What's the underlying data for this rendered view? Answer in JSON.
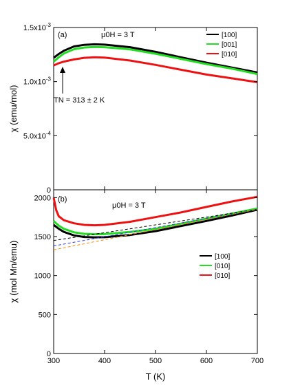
{
  "chart_data": [
    {
      "panel_label": "(a)",
      "type": "line",
      "annotation_field": "μ0H = 3 T",
      "annotation_tn": "TN = 313 ± 2 K",
      "ylabel": "χ (emu/mol)",
      "xlim": [
        300,
        700
      ],
      "ylim": [
        0,
        0.0015
      ],
      "y_tick_labels": [
        "0",
        "5.0x10-4",
        "1.0x10-3",
        "1.5x10-3"
      ],
      "y_ticks": [
        0,
        0.0005,
        0.001,
        0.0015
      ],
      "legend_position": "top-right",
      "series": [
        {
          "name": "[100]",
          "color": "#000000",
          "x": [
            300,
            310,
            320,
            340,
            360,
            380,
            400,
            450,
            500,
            550,
            600,
            650,
            700
          ],
          "y": [
            0.00122,
            0.001255,
            0.001285,
            0.001325,
            0.00134,
            0.001345,
            0.001342,
            0.001318,
            0.001275,
            0.001225,
            0.001175,
            0.00113,
            0.001085
          ]
        },
        {
          "name": "[001]",
          "color": "#22dd22",
          "x": [
            300,
            310,
            320,
            340,
            360,
            380,
            400,
            450,
            500,
            550,
            600,
            650,
            700
          ],
          "y": [
            0.001185,
            0.001225,
            0.00126,
            0.0013,
            0.001315,
            0.00132,
            0.001318,
            0.001298,
            0.001258,
            0.00121,
            0.001162,
            0.00112,
            0.00107
          ]
        },
        {
          "name": "[010]",
          "color": "#ee1111",
          "x": [
            300,
            310,
            320,
            340,
            360,
            380,
            400,
            450,
            500,
            550,
            600,
            650,
            700
          ],
          "y": [
            0.00115,
            0.00117,
            0.001185,
            0.001205,
            0.00122,
            0.001225,
            0.001222,
            0.001195,
            0.001155,
            0.00111,
            0.001065,
            0.00103,
            0.000995
          ]
        }
      ]
    },
    {
      "panel_label": "(b)",
      "type": "line",
      "annotation_field": "μ0H = 3 T",
      "xlabel": "T (K)",
      "ylabel": "χ (mol Mn/emu)",
      "xlim": [
        300,
        700
      ],
      "ylim": [
        0,
        2100
      ],
      "x_ticks": [
        300,
        400,
        500,
        600,
        700
      ],
      "y_ticks": [
        0,
        500,
        1000,
        1500,
        2000
      ],
      "legend_position": "center-right",
      "series": [
        {
          "name": "[100]",
          "color": "#000000",
          "x": [
            300,
            310,
            320,
            340,
            360,
            380,
            400,
            450,
            500,
            550,
            600,
            650,
            700
          ],
          "y": [
            1650,
            1600,
            1560,
            1515,
            1495,
            1490,
            1492,
            1520,
            1570,
            1635,
            1700,
            1770,
            1845
          ]
        },
        {
          "name": "[010]",
          "color": "#22dd22",
          "x": [
            300,
            310,
            320,
            340,
            360,
            380,
            400,
            450,
            500,
            550,
            600,
            650,
            700
          ],
          "y": [
            1700,
            1640,
            1600,
            1555,
            1535,
            1530,
            1532,
            1560,
            1600,
            1665,
            1730,
            1795,
            1860
          ]
        },
        {
          "name": "[010]",
          "color": "#ee1111",
          "x": [
            300,
            305,
            310,
            320,
            340,
            360,
            380,
            400,
            450,
            500,
            550,
            600,
            650,
            700
          ],
          "y": [
            2000,
            1840,
            1760,
            1710,
            1670,
            1650,
            1645,
            1650,
            1690,
            1750,
            1810,
            1880,
            1950,
            2010
          ]
        },
        {
          "name": "",
          "color": "#000000",
          "dashed": true,
          "x": [
            300,
            700
          ],
          "y": [
            1450,
            1850
          ]
        },
        {
          "name": "",
          "color": "#3333ee",
          "dashed": true,
          "x": [
            300,
            700
          ],
          "y": [
            1380,
            1850
          ]
        },
        {
          "name": "",
          "color": "#ff8800",
          "dashed": true,
          "x": [
            300,
            700
          ],
          "y": [
            1330,
            1850
          ]
        }
      ]
    }
  ]
}
